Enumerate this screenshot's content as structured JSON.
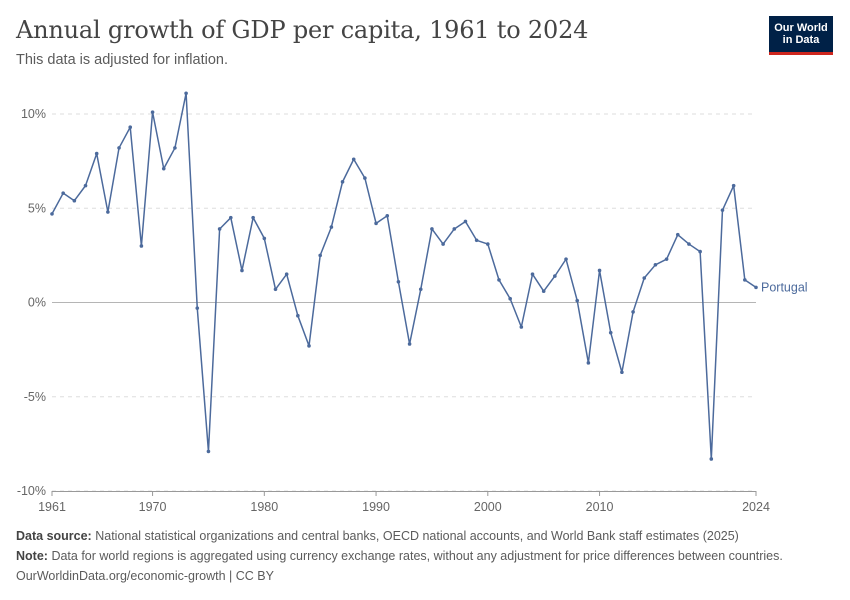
{
  "header": {
    "title": "Annual growth of GDP per capita, 1961 to 2024",
    "subtitle": "This data is adjusted for inflation."
  },
  "logo": {
    "line1": "Our World",
    "line2": "in Data",
    "bg_color": "#002147",
    "accent_color": "#ce261e"
  },
  "footer": {
    "source_label": "Data source:",
    "source_text": "National statistical organizations and central banks, OECD national accounts, and World Bank staff estimates (2025)",
    "note_label": "Note:",
    "note_text": "Data for world regions is aggregated using currency exchange rates, without any adjustment for price differences between countries.",
    "url_text": "OurWorldinData.org/economic-growth | CC BY"
  },
  "chart_data": {
    "type": "line",
    "title": "Annual growth of GDP per capita, 1961 to 2024",
    "subtitle": "This data is adjusted for inflation.",
    "xlabel": "",
    "ylabel": "",
    "xlim": [
      1961,
      2024
    ],
    "ylim": [
      -10,
      10
    ],
    "x_ticks": [
      {
        "value": 1961,
        "label": "1961"
      },
      {
        "value": 1970,
        "label": "1970"
      },
      {
        "value": 1980,
        "label": "1980"
      },
      {
        "value": 1990,
        "label": "1990"
      },
      {
        "value": 2000,
        "label": "2000"
      },
      {
        "value": 2010,
        "label": "2010"
      },
      {
        "value": 2024,
        "label": "2024"
      }
    ],
    "y_ticks": [
      {
        "value": 10,
        "label": "10%"
      },
      {
        "value": 5,
        "label": "5%"
      },
      {
        "value": 0,
        "label": "0%"
      },
      {
        "value": -5,
        "label": "-5%"
      },
      {
        "value": -10,
        "label": "-10%"
      }
    ],
    "grid": "horizontal dashed",
    "line_color": "#4c6a9c",
    "series": [
      {
        "name": "Portugal",
        "x": [
          1961,
          1962,
          1963,
          1964,
          1965,
          1966,
          1967,
          1968,
          1969,
          1970,
          1971,
          1972,
          1973,
          1974,
          1975,
          1976,
          1977,
          1978,
          1979,
          1980,
          1981,
          1982,
          1983,
          1984,
          1985,
          1986,
          1987,
          1988,
          1989,
          1990,
          1991,
          1992,
          1993,
          1994,
          1995,
          1996,
          1997,
          1998,
          1999,
          2000,
          2001,
          2002,
          2003,
          2004,
          2005,
          2006,
          2007,
          2008,
          2009,
          2010,
          2011,
          2012,
          2013,
          2014,
          2015,
          2016,
          2017,
          2018,
          2019,
          2020,
          2021,
          2022,
          2023,
          2024
        ],
        "values": [
          4.7,
          5.8,
          5.4,
          6.2,
          7.9,
          4.8,
          8.2,
          9.3,
          3.0,
          10.1,
          7.1,
          8.2,
          11.1,
          -0.3,
          -7.9,
          3.9,
          4.5,
          1.7,
          4.5,
          3.4,
          0.7,
          1.5,
          -0.7,
          -2.3,
          2.5,
          4.0,
          6.4,
          7.6,
          6.6,
          4.2,
          4.6,
          1.1,
          -2.2,
          0.7,
          3.9,
          3.1,
          3.9,
          4.3,
          3.3,
          3.1,
          1.2,
          0.2,
          -1.3,
          1.5,
          0.6,
          1.4,
          2.3,
          0.1,
          -3.2,
          1.7,
          -1.6,
          -3.7,
          -0.5,
          1.3,
          2.0,
          2.3,
          3.6,
          3.1,
          2.7,
          -8.3,
          4.9,
          6.2,
          1.2,
          0.8
        ]
      }
    ]
  }
}
